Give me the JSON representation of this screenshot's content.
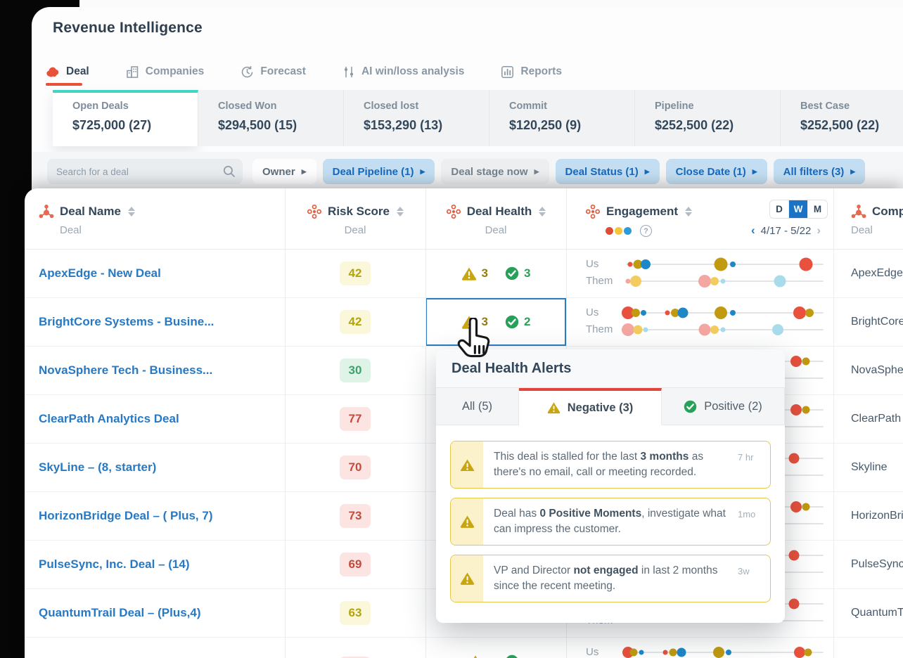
{
  "header": {
    "title": "Revenue Intelligence",
    "nav_tabs": [
      {
        "label": "Deal",
        "icon": "deal-icon",
        "active": true
      },
      {
        "label": "Companies",
        "icon": "companies-icon",
        "active": false
      },
      {
        "label": "Forecast",
        "icon": "forecast-icon",
        "active": false
      },
      {
        "label": "AI win/loss analysis",
        "icon": "ai-analysis-icon",
        "active": false
      },
      {
        "label": "Reports",
        "icon": "reports-icon",
        "active": false
      }
    ],
    "summary_cards": [
      {
        "label": "Open Deals",
        "value": "$725,000 (27)",
        "active": true
      },
      {
        "label": "Closed Won",
        "value": "$294,500 (15)",
        "active": false
      },
      {
        "label": "Closed lost",
        "value": "$153,290 (13)",
        "active": false
      },
      {
        "label": "Commit",
        "value": "$120,250 (9)",
        "active": false
      },
      {
        "label": "Pipeline",
        "value": "$252,500 (22)",
        "active": false
      },
      {
        "label": "Best Case",
        "value": "$252,500 (22)",
        "active": false
      }
    ],
    "filters": {
      "search_placeholder": "Search for a deal",
      "chips": [
        {
          "label": "Owner",
          "style": "plain"
        },
        {
          "label": "Deal Pipeline (1)",
          "style": "blue"
        },
        {
          "label": "Deal stage now",
          "style": "gray"
        },
        {
          "label": "Deal Status (1)",
          "style": "blue"
        },
        {
          "label": "Close Date (1)",
          "style": "blue"
        },
        {
          "label": "All filters (3)",
          "style": "blue"
        }
      ]
    }
  },
  "table": {
    "columns": [
      {
        "title": "Deal Name",
        "subtitle": "Deal",
        "icon": "sprocket-icon",
        "align": "left",
        "sortable": true
      },
      {
        "title": "Risk Score",
        "subtitle": "Deal",
        "icon": "cluster-icon",
        "align": "center",
        "sortable": true
      },
      {
        "title": "Deal Health",
        "subtitle": "Deal",
        "icon": "cluster-icon",
        "align": "center",
        "sortable": true
      },
      {
        "title": "Engagement",
        "subtitle": "",
        "icon": "cluster-icon",
        "align": "left",
        "sortable": true
      },
      {
        "title": "Company",
        "subtitle": "Deal",
        "icon": "sprocket-icon",
        "align": "left",
        "sortable": false
      }
    ],
    "engagement_header": {
      "legend_colors": [
        "#e04b35",
        "#f2c53d",
        "#2b9cd8"
      ],
      "help_label": "?",
      "period_options": [
        "D",
        "W",
        "M"
      ],
      "period_selected": "W",
      "date_range": "4/17 - 5/22",
      "us_label": "Us",
      "them_label": "Them"
    },
    "rows": [
      {
        "name": "ApexEdge - New Deal",
        "company": "ApexEdge",
        "risk": {
          "value": "42",
          "tone": "yellow"
        },
        "health": {
          "neg": "3",
          "pos": "3",
          "highlighted": false
        },
        "eng": {
          "us": [
            {
              "p": 2,
              "c": "red",
              "s": 7
            },
            {
              "p": 6,
              "c": "olive",
              "s": 13
            },
            {
              "p": 10,
              "c": "blue",
              "s": 14
            },
            {
              "p": 48,
              "c": "olive",
              "s": 19
            },
            {
              "p": 54,
              "c": "blue",
              "s": 8
            },
            {
              "p": 91,
              "c": "red",
              "s": 19
            }
          ],
          "them": [
            {
              "p": 1,
              "c": "pink",
              "s": 7
            },
            {
              "p": 5,
              "c": "yellow",
              "s": 16
            },
            {
              "p": 40,
              "c": "pink",
              "s": 18
            },
            {
              "p": 45,
              "c": "yellow",
              "s": 12
            },
            {
              "p": 49,
              "c": "lightblue",
              "s": 7
            },
            {
              "p": 78,
              "c": "lightblue",
              "s": 17
            }
          ]
        }
      },
      {
        "name": "BrightCore Systems - Busine...",
        "company": "BrightCore",
        "risk": {
          "value": "42",
          "tone": "yellow"
        },
        "health": {
          "neg": "3",
          "pos": "2",
          "highlighted": true
        },
        "eng": {
          "us": [
            {
              "p": 1,
              "c": "red",
              "s": 18
            },
            {
              "p": 5,
              "c": "olive",
              "s": 12
            },
            {
              "p": 9,
              "c": "blue",
              "s": 8
            },
            {
              "p": 21,
              "c": "red",
              "s": 7
            },
            {
              "p": 25,
              "c": "olive",
              "s": 12
            },
            {
              "p": 29,
              "c": "blue",
              "s": 15
            },
            {
              "p": 48,
              "c": "olive",
              "s": 18
            },
            {
              "p": 54,
              "c": "blue",
              "s": 8
            },
            {
              "p": 88,
              "c": "red",
              "s": 18
            },
            {
              "p": 93,
              "c": "olive",
              "s": 12
            }
          ],
          "them": [
            {
              "p": 1,
              "c": "pink",
              "s": 18
            },
            {
              "p": 6,
              "c": "yellow",
              "s": 13
            },
            {
              "p": 10,
              "c": "lightblue",
              "s": 7
            },
            {
              "p": 40,
              "c": "pink",
              "s": 17
            },
            {
              "p": 45,
              "c": "yellow",
              "s": 12
            },
            {
              "p": 49,
              "c": "lightblue",
              "s": 7
            },
            {
              "p": 77,
              "c": "lightblue",
              "s": 16
            }
          ]
        }
      },
      {
        "name": "NovaSphere Tech - Business...",
        "company": "NovaSphere",
        "risk": {
          "value": "30",
          "tone": "green"
        },
        "health": null,
        "eng": {
          "us": [
            {
              "p": 86,
              "c": "red",
              "s": 16
            },
            {
              "p": 91,
              "c": "olive",
              "s": 11
            }
          ],
          "them": []
        }
      },
      {
        "name": "ClearPath Analytics Deal",
        "company": "ClearPath",
        "risk": {
          "value": "77",
          "tone": "red"
        },
        "health": null,
        "eng": {
          "us": [
            {
              "p": 86,
              "c": "red",
              "s": 16
            },
            {
              "p": 91,
              "c": "olive",
              "s": 11
            }
          ],
          "them": []
        }
      },
      {
        "name": "SkyLine – (8, starter)",
        "company": "Skyline",
        "risk": {
          "value": "70",
          "tone": "red"
        },
        "health": null,
        "eng": {
          "us": [
            {
              "p": 85,
              "c": "red",
              "s": 15
            }
          ],
          "them": []
        }
      },
      {
        "name": "HorizonBridge Deal – ( Plus, 7)",
        "company": "HorizonBridge",
        "risk": {
          "value": "73",
          "tone": "red"
        },
        "health": null,
        "eng": {
          "us": [
            {
              "p": 86,
              "c": "red",
              "s": 16
            },
            {
              "p": 91,
              "c": "olive",
              "s": 11
            }
          ],
          "them": []
        }
      },
      {
        "name": "PulseSync, Inc. Deal – (14)",
        "company": "PulseSync",
        "risk": {
          "value": "69",
          "tone": "red"
        },
        "health": null,
        "eng": {
          "us": [
            {
              "p": 85,
              "c": "red",
              "s": 15
            }
          ],
          "them": []
        }
      },
      {
        "name": "QuantumTrail Deal – (Plus,4)",
        "company": "QuantumTrail",
        "risk": {
          "value": "63",
          "tone": "yellow"
        },
        "health": null,
        "eng": {
          "us": [
            {
              "p": 85,
              "c": "red",
              "s": 15
            }
          ],
          "them": []
        }
      },
      {
        "name": "",
        "company": "",
        "risk": {
          "value": "",
          "tone": "red"
        },
        "health": {
          "neg": "",
          "pos": "",
          "highlighted": false
        },
        "eng": {
          "us": [
            {
              "p": 1,
              "c": "red",
              "s": 16
            },
            {
              "p": 4,
              "c": "olive",
              "s": 11
            },
            {
              "p": 8,
              "c": "blue",
              "s": 7
            },
            {
              "p": 20,
              "c": "red",
              "s": 7
            },
            {
              "p": 24,
              "c": "olive",
              "s": 11
            },
            {
              "p": 28,
              "c": "blue",
              "s": 13
            },
            {
              "p": 47,
              "c": "olive",
              "s": 16
            },
            {
              "p": 52,
              "c": "blue",
              "s": 8
            },
            {
              "p": 88,
              "c": "red",
              "s": 16
            },
            {
              "p": 92,
              "c": "olive",
              "s": 11
            }
          ],
          "them": []
        }
      }
    ]
  },
  "popup": {
    "title": "Deal Health Alerts",
    "tabs": [
      {
        "label": "All (5)",
        "icon": null,
        "active": false
      },
      {
        "label": "Negative (3)",
        "icon": "warning",
        "active": true
      },
      {
        "label": "Positive (2)",
        "icon": "check",
        "active": false
      }
    ],
    "alerts": [
      {
        "segments": [
          {
            "t": "This deal is stalled for the last "
          },
          {
            "t": "3 months",
            "b": true
          },
          {
            "t": " as there's no email, call or meeting recorded."
          }
        ],
        "time": "7 hr"
      },
      {
        "segments": [
          {
            "t": "Deal has "
          },
          {
            "t": "0 Positive Moments",
            "b": true
          },
          {
            "t": ", investigate what can impress the customer."
          }
        ],
        "time": "1mo"
      },
      {
        "segments": [
          {
            "t": "VP and Director "
          },
          {
            "t": "not engaged",
            "b": true
          },
          {
            "t": " in last 2 months since the recent meeting."
          }
        ],
        "time": "3w"
      }
    ]
  },
  "colors": {
    "accent_red": "#e8503a",
    "teal": "#41d6c3",
    "link_blue": "#2779c4",
    "chip_blue_bg": "#c3def2",
    "chip_blue_fg": "#1769bd",
    "warn": "#c9a50f",
    "positive": "#27a05a",
    "highlight_border": "#2b7cc0",
    "risk_tones": {
      "yellow": {
        "bg": "#fbf7da",
        "fg": "#b2a40d"
      },
      "green": {
        "bg": "#e0f3e7",
        "fg": "#3ca36a"
      },
      "red": {
        "bg": "#fbe4e1",
        "fg": "#c24b3e"
      }
    },
    "dot_palette": {
      "red": "#e8513d",
      "olive": "#c19a10",
      "blue": "#1e88c7",
      "pink": "#f4a6a0",
      "yellow": "#f3cc5f",
      "lightblue": "#a8dcec"
    }
  }
}
